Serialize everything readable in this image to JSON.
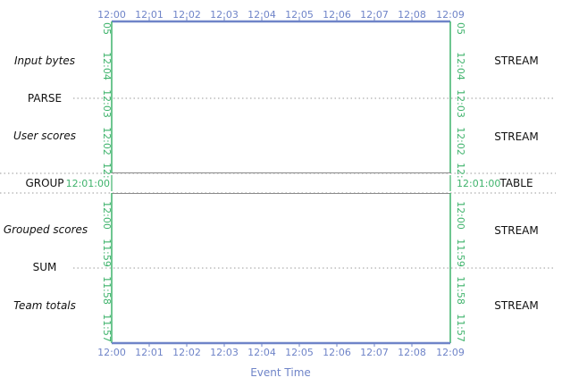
{
  "colors": {
    "event_axis": "#6f84c8",
    "processing_axis": "#3fb36c",
    "separator": "#9a9a9a",
    "text": "#111111"
  },
  "event_time": {
    "title": "Event Time",
    "ticks": [
      "12:00",
      "12:01",
      "12:02",
      "12:03",
      "12:04",
      "12:05",
      "12:06",
      "12:07",
      "12:08",
      "12:09"
    ]
  },
  "processing_time": {
    "top_ticks": [
      "05",
      "12:04",
      "12:03",
      "12:02",
      "12:"
    ],
    "middle_label": "12:01:00",
    "bottom_ticks": [
      "12:00",
      "11:59",
      "11:58",
      "11:57"
    ]
  },
  "pipeline": {
    "collections": [
      "Input bytes",
      "User scores",
      "Grouped scores",
      "Team totals"
    ],
    "stages": [
      "PARSE",
      "GROUP",
      "SUM"
    ],
    "kinds": [
      "STREAM",
      "STREAM",
      "TABLE",
      "STREAM",
      "STREAM"
    ]
  }
}
